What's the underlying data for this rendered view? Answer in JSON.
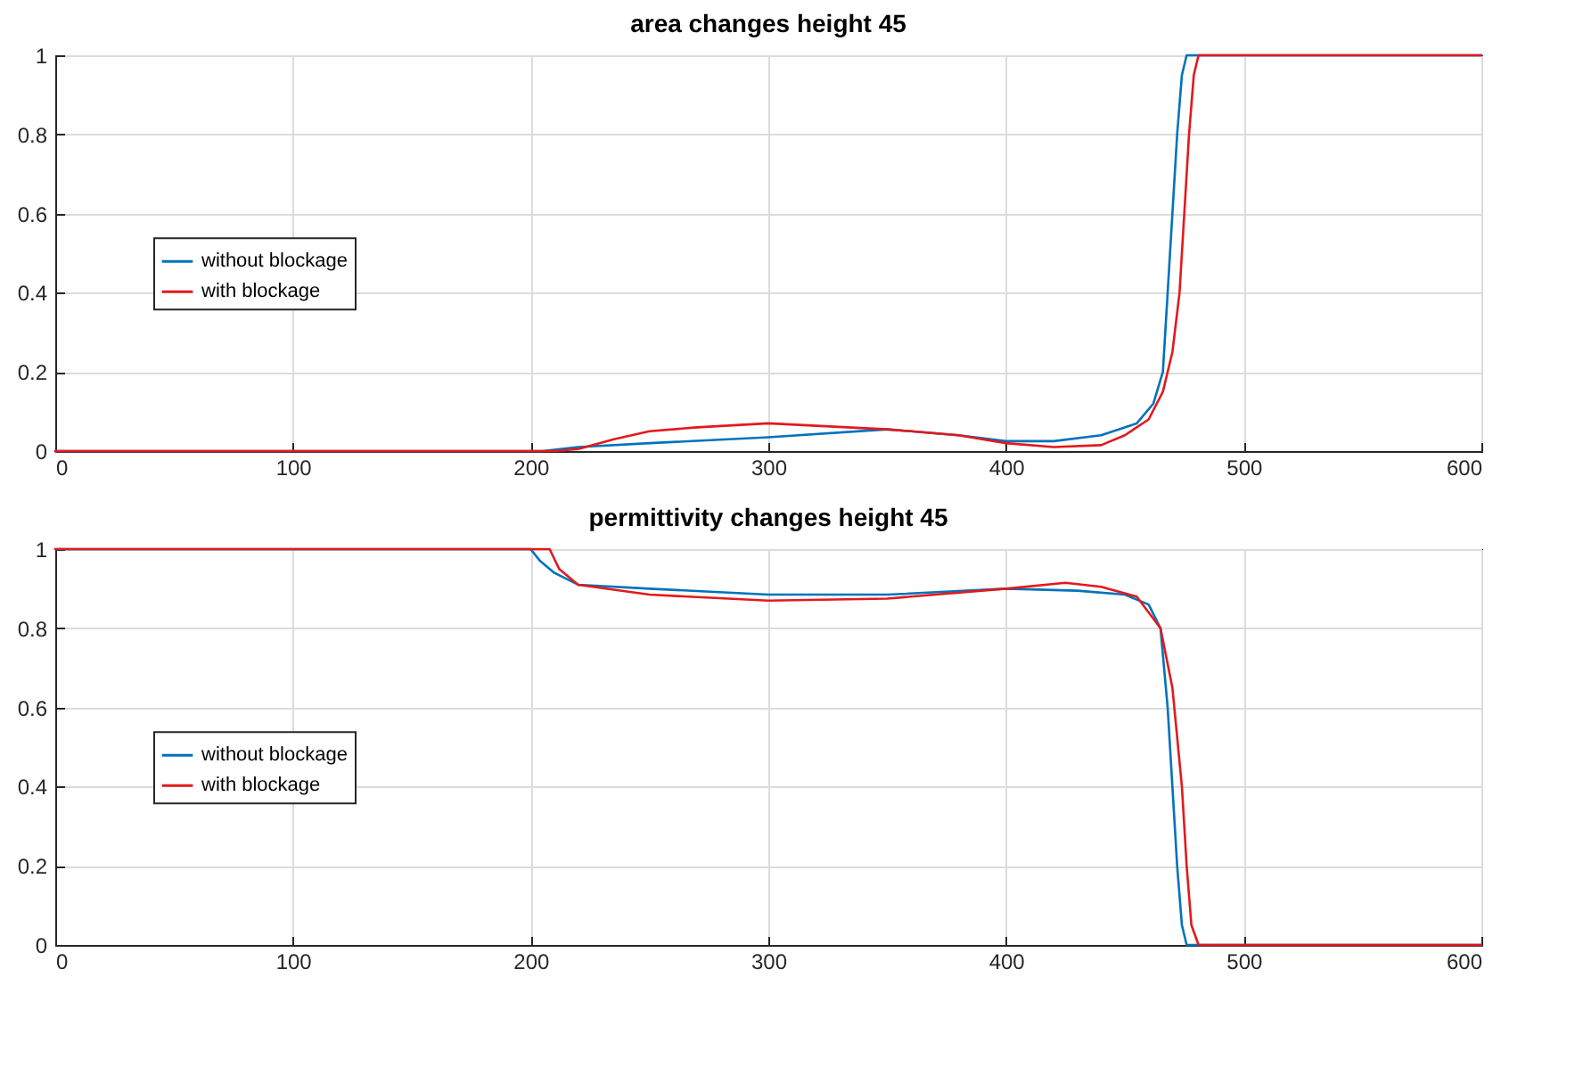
{
  "chart_data": [
    {
      "type": "line",
      "title": "area changes height 45",
      "xlim": [
        0,
        600
      ],
      "xticks": [
        0,
        100,
        200,
        300,
        400,
        500,
        600
      ],
      "ylim": [
        0,
        1
      ],
      "yticks": [
        0,
        0.2,
        0.4,
        0.6,
        0.8,
        1
      ],
      "grid": true,
      "legend": "left",
      "line_style": "solid",
      "marker": "none",
      "series": [
        {
          "name": "without blockage",
          "color": "#0072bd",
          "x": [
            0,
            205,
            220,
            250,
            300,
            350,
            380,
            400,
            420,
            440,
            455,
            462,
            466,
            468,
            470,
            472,
            474,
            476,
            600
          ],
          "values": [
            0,
            0,
            0.01,
            0.02,
            0.035,
            0.055,
            0.04,
            0.025,
            0.025,
            0.04,
            0.07,
            0.12,
            0.2,
            0.4,
            0.6,
            0.8,
            0.95,
            1,
            1
          ]
        },
        {
          "name": "with blockage",
          "color": "#e3191c",
          "x": [
            0,
            210,
            220,
            235,
            250,
            270,
            300,
            350,
            380,
            400,
            420,
            440,
            450,
            460,
            466,
            470,
            473,
            475,
            477,
            479,
            481,
            600
          ],
          "values": [
            0,
            0,
            0.005,
            0.03,
            0.05,
            0.06,
            0.07,
            0.055,
            0.04,
            0.02,
            0.01,
            0.015,
            0.04,
            0.08,
            0.15,
            0.25,
            0.4,
            0.6,
            0.8,
            0.95,
            1,
            1
          ]
        }
      ]
    },
    {
      "type": "line",
      "title": "permittivity changes height 45",
      "xlim": [
        0,
        600
      ],
      "xticks": [
        0,
        100,
        200,
        300,
        400,
        500,
        600
      ],
      "ylim": [
        0,
        1
      ],
      "yticks": [
        0,
        0.2,
        0.4,
        0.6,
        0.8,
        1
      ],
      "grid": true,
      "legend": "left",
      "line_style": "solid",
      "marker": "none",
      "series": [
        {
          "name": "without blockage",
          "color": "#0072bd",
          "x": [
            0,
            200,
            204,
            210,
            220,
            250,
            300,
            350,
            400,
            430,
            450,
            460,
            465,
            468,
            470,
            472,
            474,
            476,
            600
          ],
          "values": [
            1,
            1,
            0.97,
            0.94,
            0.91,
            0.9,
            0.885,
            0.885,
            0.9,
            0.895,
            0.885,
            0.86,
            0.8,
            0.6,
            0.4,
            0.2,
            0.05,
            0,
            0
          ]
        },
        {
          "name": "with blockage",
          "color": "#e3191c",
          "x": [
            0,
            208,
            212,
            220,
            250,
            300,
            350,
            400,
            425,
            440,
            455,
            465,
            470,
            474,
            476,
            478,
            481,
            600
          ],
          "values": [
            1,
            1,
            0.95,
            0.91,
            0.885,
            0.87,
            0.875,
            0.9,
            0.915,
            0.905,
            0.88,
            0.8,
            0.65,
            0.4,
            0.2,
            0.05,
            0,
            0
          ]
        }
      ]
    }
  ]
}
